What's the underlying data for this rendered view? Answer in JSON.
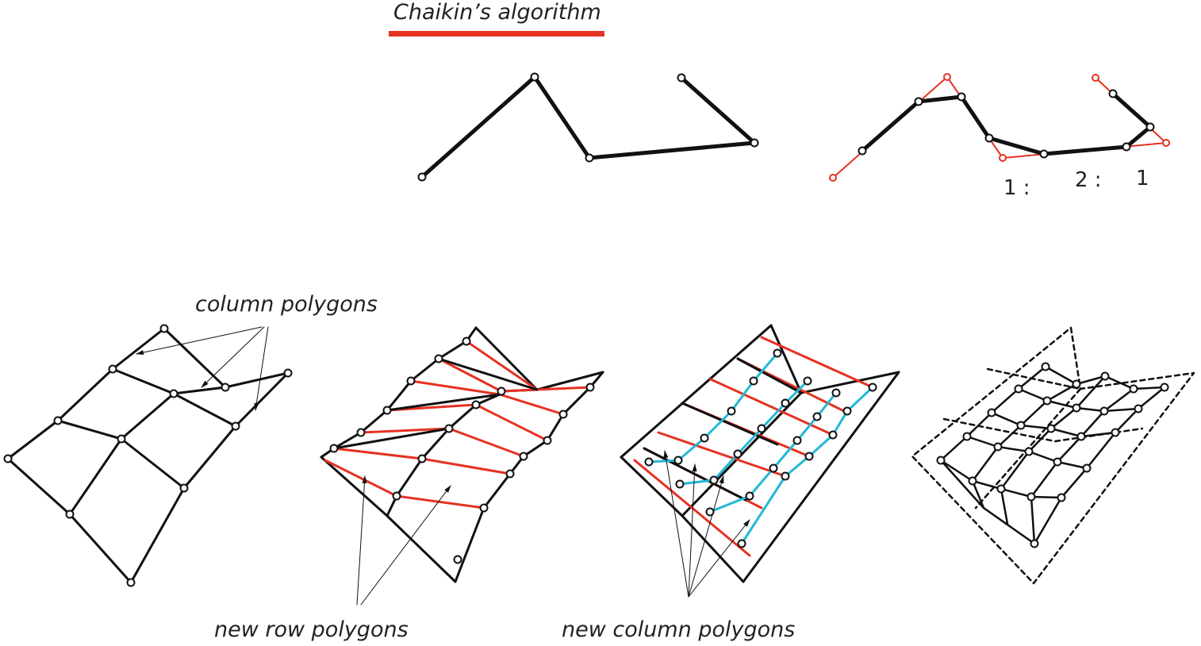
{
  "title": "Chaikin’s algorithm",
  "labels": {
    "column_polygons": "column polygons",
    "new_row_polygons": "new row polygons",
    "new_column_polygons": "new column polygons"
  },
  "ratio": {
    "a": "1 :",
    "b": "2 :",
    "c": "1"
  },
  "colors": {
    "accent": "#e53222",
    "control": "#111111",
    "cyan": "#22b8d6"
  }
}
